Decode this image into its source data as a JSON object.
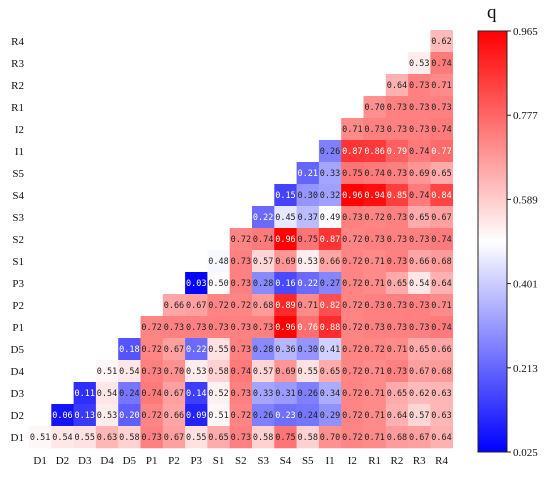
{
  "chart_data": {
    "type": "heatmap",
    "labels": [
      "D1",
      "D2",
      "D3",
      "D4",
      "D5",
      "P1",
      "P2",
      "P3",
      "S1",
      "S2",
      "S3",
      "S4",
      "S5",
      "I1",
      "I2",
      "R1",
      "R2",
      "R3",
      "R4"
    ],
    "rows_top_to_bottom": [
      "R4",
      "R3",
      "R2",
      "R1",
      "I2",
      "I1",
      "S5",
      "S4",
      "S3",
      "S2",
      "S1",
      "P3",
      "P2",
      "P1",
      "D5",
      "D4",
      "D3",
      "D2",
      "D1"
    ],
    "matrix_text": {
      "D1": [
        "0.51",
        "0.54",
        "0.55",
        "0.63",
        "0.58",
        "0.73",
        "0.67",
        "0.55",
        "0.65",
        "0.73",
        "0.58",
        "0.75",
        "0.58",
        "0.70",
        "0.72",
        "0.71",
        "0.68",
        "0.67",
        "0.64"
      ],
      "D2": [
        "",
        "0.06",
        "0.13",
        "0.53",
        "0.20",
        "0.72",
        "0.66",
        "0.09",
        "0.51",
        "0.72",
        "0.26",
        "0.23",
        "0.24",
        "0.29",
        "0.72",
        "0.71",
        "0.64",
        "0.57",
        "0.63"
      ],
      "D3": [
        "",
        "",
        "0.11",
        "0.54",
        "0.24",
        "0.74",
        "0.67",
        "0.14",
        "0.52",
        "0.73",
        "0.33",
        "0.31",
        "0.26",
        "0.34",
        "0.72",
        "0.71",
        "0.65",
        "0.62",
        "0.63"
      ],
      "D4": [
        "",
        "",
        "",
        "0.51",
        "0.54",
        "0.73",
        "0.70",
        "0.53",
        "0.58",
        "0.74",
        "0.57",
        "0.69",
        "0.55",
        "0.65",
        "0.72",
        "0.71",
        "0.73",
        "0.67",
        "0.68"
      ],
      "D5": [
        "",
        "",
        "",
        "",
        "0.18",
        "0.72",
        "0.67",
        "0.22",
        "0.55",
        "0.73",
        "0.28",
        "0.36",
        "0.30",
        "0.41",
        "0.72",
        "0.72",
        "0.71",
        "0.65",
        "0.66"
      ],
      "P1": [
        "",
        "",
        "",
        "",
        "",
        "0.72",
        "0.73",
        "0.73",
        "0.73",
        "0.73",
        "0.73",
        "0.96",
        "0.76",
        "0.88",
        "0.72",
        "0.73",
        "0.73",
        "0.73",
        "0.74"
      ],
      "P2": [
        "",
        "",
        "",
        "",
        "",
        "",
        "0.66",
        "0.67",
        "0.72",
        "0.72",
        "0.68",
        "0.89",
        "0.71",
        "0.82",
        "0.72",
        "0.73",
        "0.73",
        "0.73",
        "0.71"
      ],
      "P3": [
        "",
        "",
        "",
        "",
        "",
        "",
        "",
        "0.03",
        "0.50",
        "0.73",
        "0.28",
        "0.16",
        "0.22",
        "0.27",
        "0.72",
        "0.71",
        "0.65",
        "0.54",
        "0.64"
      ],
      "S1": [
        "",
        "",
        "",
        "",
        "",
        "",
        "",
        "",
        "0.48",
        "0.73",
        "0.57",
        "0.69",
        "0.53",
        "0.66",
        "0.72",
        "0.71",
        "0.73",
        "0.66",
        "0.68"
      ],
      "S2": [
        "",
        "",
        "",
        "",
        "",
        "",
        "",
        "",
        "",
        "0.72",
        "0.74",
        "0.96",
        "0.75",
        "0.87",
        "0.72",
        "0.73",
        "0.73",
        "0.73",
        "0.74"
      ],
      "S3": [
        "",
        "",
        "",
        "",
        "",
        "",
        "",
        "",
        "",
        "",
        "0.22",
        "0.45",
        "0.37",
        "0.49",
        "0.73",
        "0.72",
        "0.73",
        "0.65",
        "0.67"
      ],
      "S4": [
        "",
        "",
        "",
        "",
        "",
        "",
        "",
        "",
        "",
        "",
        "",
        "0.15",
        "0.30",
        "0.32",
        "0.96",
        "0.94",
        "0.85",
        "0.74",
        "0.84"
      ],
      "S5": [
        "",
        "",
        "",
        "",
        "",
        "",
        "",
        "",
        "",
        "",
        "",
        "",
        "0.21",
        "0.33",
        "0.75",
        "0.74",
        "0.73",
        "0.69",
        "0.65"
      ],
      "I1": [
        "",
        "",
        "",
        "",
        "",
        "",
        "",
        "",
        "",
        "",
        "",
        "",
        "",
        "0.26",
        "0.87",
        "0.86",
        "0.79",
        "0.74",
        "0.77"
      ],
      "I2": [
        "",
        "",
        "",
        "",
        "",
        "",
        "",
        "",
        "",
        "",
        "",
        "",
        "",
        "",
        "0.71",
        "0.73",
        "0.73",
        "0.73",
        "0.74"
      ],
      "R1": [
        "",
        "",
        "",
        "",
        "",
        "",
        "",
        "",
        "",
        "",
        "",
        "",
        "",
        "",
        "",
        "0.70",
        "0.73",
        "0.73",
        "0.73"
      ],
      "R2": [
        "",
        "",
        "",
        "",
        "",
        "",
        "",
        "",
        "",
        "",
        "",
        "",
        "",
        "",
        "",
        "",
        "0.64",
        "0.73",
        "0.71"
      ],
      "R3": [
        "",
        "",
        "",
        "",
        "",
        "",
        "",
        "",
        "",
        "",
        "",
        "",
        "",
        "",
        "",
        "",
        "",
        "0.53",
        "0.74"
      ],
      "R4": [
        "",
        "",
        "",
        "",
        "",
        "",
        "",
        "",
        "",
        "",
        "",
        "",
        "",
        "",
        "",
        "",
        "",
        "",
        "0.62"
      ]
    },
    "colorbar": {
      "title": "q",
      "min": 0.025,
      "max": 0.965,
      "ticks": [
        "0.965",
        "0.777",
        "0.589",
        "0.401",
        "0.213",
        "0.025"
      ],
      "color_low": "#0000ff",
      "color_mid": "#ffffff",
      "color_high": "#ff0000"
    }
  }
}
